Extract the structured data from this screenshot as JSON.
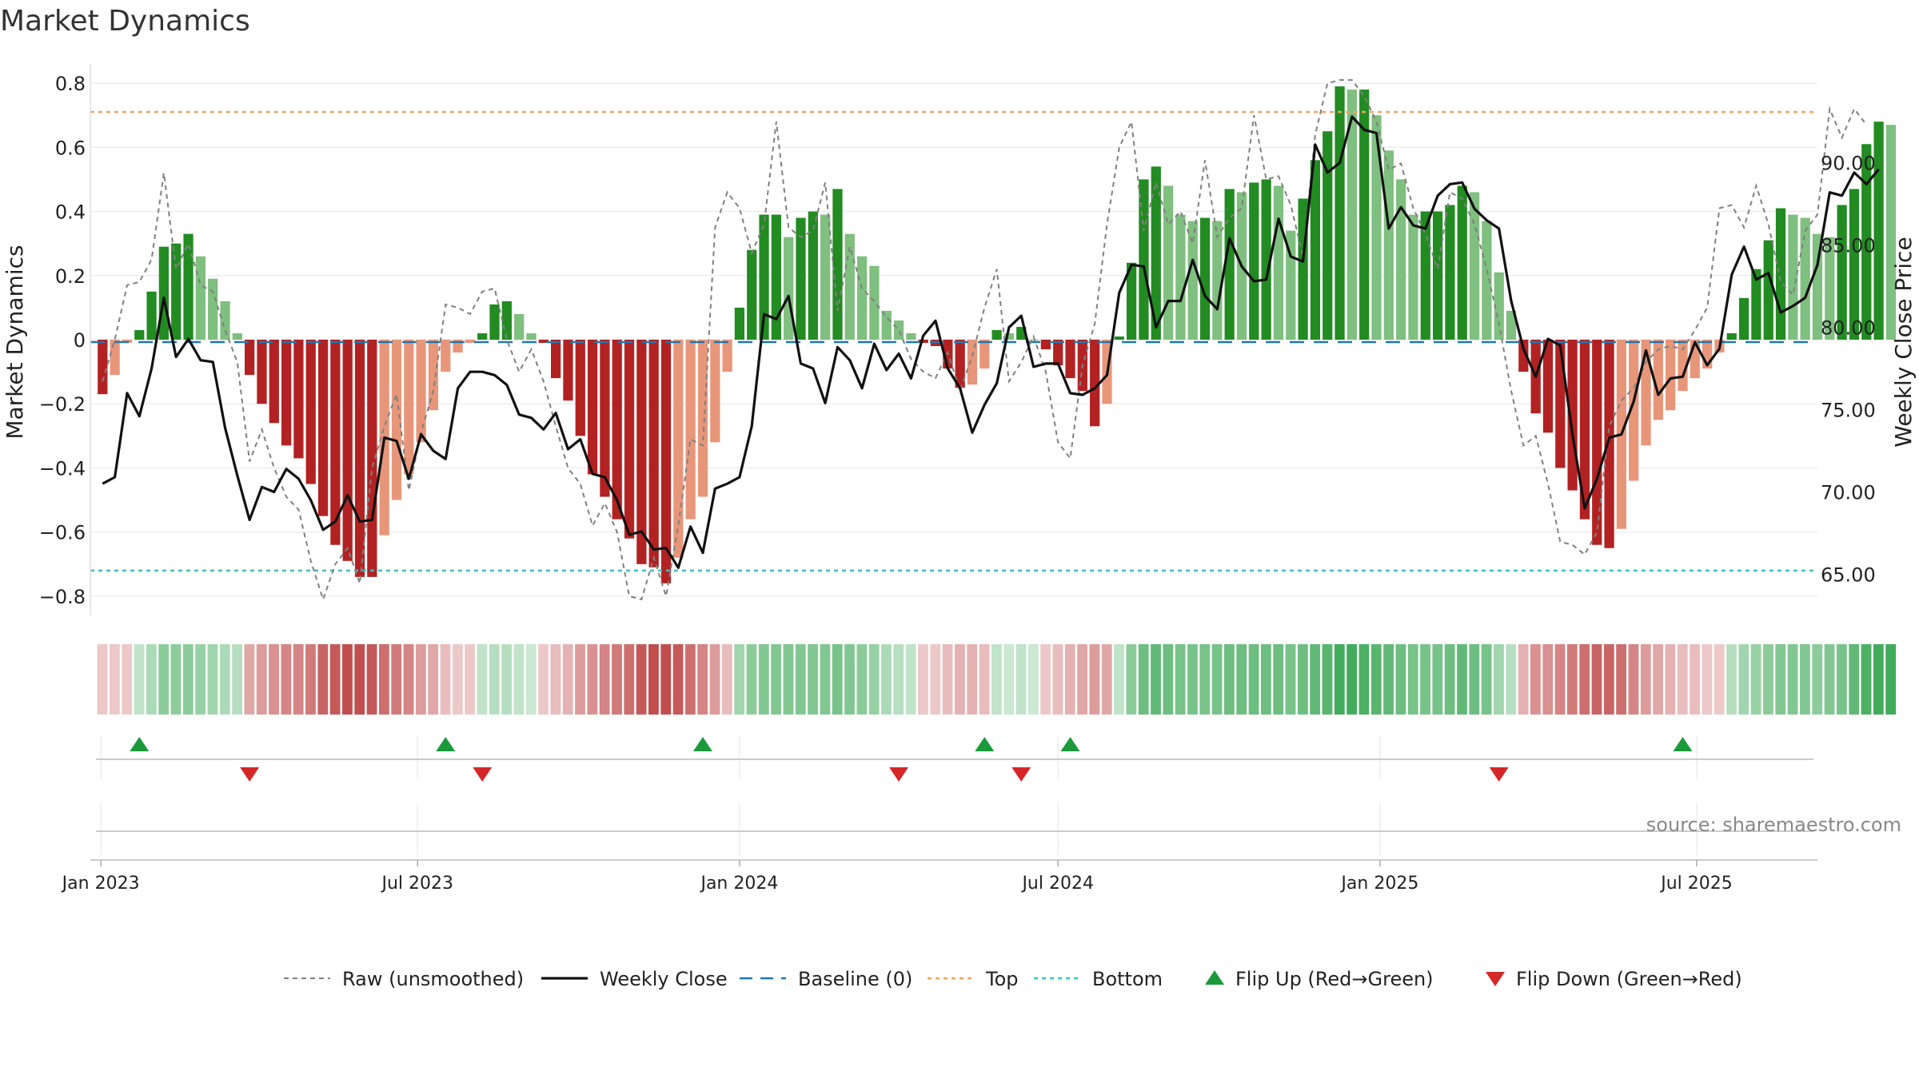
{
  "chart_data": {
    "type": "bar",
    "title": "Market Dynamics",
    "ylabel_left": "Market Dynamics",
    "ylabel_right": "Weekly Close Price",
    "source": "source: sharemaestro.com",
    "x_range": [
      "2022-12-26",
      "2025-09-08"
    ],
    "x_ticks": [
      {
        "date": "2023-01-01",
        "label": "Jan 2023"
      },
      {
        "date": "2023-07-01",
        "label": "Jul 2023"
      },
      {
        "date": "2024-01-01",
        "label": "Jan 2024"
      },
      {
        "date": "2024-07-01",
        "label": "Jul 2024"
      },
      {
        "date": "2025-01-01",
        "label": "Jan 2025"
      },
      {
        "date": "2025-07-01",
        "label": "Jul 2025"
      }
    ],
    "y_left": {
      "range": [
        -0.86,
        0.86
      ],
      "ticks": [
        0.8,
        0.6,
        0.4,
        0.2,
        0,
        -0.2,
        -0.4,
        -0.6,
        -0.8
      ],
      "tick_labels": [
        "0.8",
        "0.6",
        "0.4",
        "0.2",
        "0",
        "−0.2",
        "−0.4",
        "−0.6",
        "−0.8"
      ]
    },
    "y_right": {
      "range": [
        62.5,
        96.0
      ],
      "ticks": [
        90,
        85,
        80,
        75,
        70,
        65
      ],
      "tick_labels": [
        "90.00",
        "85.00",
        "80.00",
        "75.00",
        "70.00",
        "65.00"
      ]
    },
    "top_level": 0.71,
    "bottom_level": -0.72,
    "grid": true,
    "colors": {
      "strong_green": "#228b22",
      "light_green": "#7fbf7f",
      "strong_red": "#b22222",
      "light_red": "#e8967a",
      "raw": "#808080",
      "weekly_close": "#111111",
      "baseline": "#1f77b4",
      "top": "#f4a460",
      "bottom": "#40c0c0",
      "flip_up": "#1a9a3a",
      "flip_down": "#d62728"
    },
    "start_date": "2023-01-02",
    "week_step_days": 7,
    "smoothed_values": [
      -0.17,
      -0.11,
      -0.01,
      0.03,
      0.15,
      0.29,
      0.3,
      0.33,
      0.26,
      0.19,
      0.12,
      0.02,
      -0.11,
      -0.2,
      -0.26,
      -0.33,
      -0.37,
      -0.45,
      -0.55,
      -0.64,
      -0.69,
      -0.74,
      -0.74,
      -0.61,
      -0.5,
      -0.42,
      -0.32,
      -0.22,
      -0.1,
      -0.04,
      -0.01,
      0.02,
      0.11,
      0.12,
      0.08,
      0.02,
      -0.01,
      -0.12,
      -0.19,
      -0.3,
      -0.42,
      -0.49,
      -0.56,
      -0.62,
      -0.7,
      -0.71,
      -0.76,
      -0.68,
      -0.56,
      -0.49,
      -0.32,
      -0.1,
      0.1,
      0.28,
      0.39,
      0.39,
      0.32,
      0.38,
      0.4,
      0.39,
      0.47,
      0.33,
      0.26,
      0.23,
      0.09,
      0.06,
      0.02,
      -0.01,
      -0.02,
      -0.09,
      -0.15,
      -0.14,
      -0.09,
      0.03,
      0.02,
      0.04,
      0.0,
      -0.03,
      -0.08,
      -0.12,
      -0.16,
      -0.27,
      -0.2,
      0.01,
      0.24,
      0.5,
      0.54,
      0.48,
      0.39,
      0.37,
      0.38,
      0.37,
      0.47,
      0.46,
      0.49,
      0.5,
      0.48,
      0.34,
      0.44,
      0.56,
      0.65,
      0.79,
      0.78,
      0.78,
      0.7,
      0.59,
      0.5,
      0.39,
      0.4,
      0.4,
      0.42,
      0.48,
      0.46,
      0.37,
      0.21,
      0.09,
      -0.1,
      -0.23,
      -0.29,
      -0.4,
      -0.47,
      -0.56,
      -0.64,
      -0.65,
      -0.59,
      -0.44,
      -0.33,
      -0.25,
      -0.22,
      -0.16,
      -0.12,
      -0.09,
      -0.04,
      0.02,
      0.13,
      0.22,
      0.31,
      0.41,
      0.39,
      0.38,
      0.33,
      0.32,
      0.42,
      0.47,
      0.61,
      0.68,
      0.67
    ],
    "raw_values": [
      -0.13,
      0.0,
      0.17,
      0.18,
      0.25,
      0.52,
      0.22,
      0.3,
      0.17,
      0.15,
      0.03,
      -0.07,
      -0.38,
      -0.28,
      -0.4,
      -0.49,
      -0.53,
      -0.69,
      -0.81,
      -0.7,
      -0.65,
      -0.76,
      -0.4,
      -0.27,
      -0.17,
      -0.47,
      -0.29,
      -0.16,
      0.11,
      0.1,
      0.08,
      0.15,
      0.16,
      0.0,
      -0.1,
      -0.03,
      -0.13,
      -0.27,
      -0.4,
      -0.45,
      -0.58,
      -0.51,
      -0.6,
      -0.8,
      -0.81,
      -0.68,
      -0.8,
      -0.58,
      -0.31,
      -0.33,
      0.35,
      0.46,
      0.41,
      0.27,
      0.36,
      0.68,
      0.35,
      0.32,
      0.34,
      0.49,
      0.09,
      0.29,
      0.16,
      0.12,
      0.07,
      0.03,
      -0.06,
      -0.1,
      -0.12,
      -0.04,
      -0.16,
      -0.05,
      0.1,
      0.22,
      -0.13,
      -0.07,
      0.01,
      -0.1,
      -0.32,
      -0.37,
      -0.08,
      0.05,
      0.36,
      0.6,
      0.68,
      0.34,
      0.49,
      0.36,
      0.4,
      0.3,
      0.56,
      0.32,
      0.38,
      0.41,
      0.7,
      0.5,
      0.51,
      0.42,
      0.26,
      0.64,
      0.8,
      0.81,
      0.81,
      0.76,
      0.68,
      0.53,
      0.55,
      0.41,
      0.33,
      0.22,
      0.46,
      0.44,
      0.36,
      0.22,
      0.05,
      -0.16,
      -0.33,
      -0.3,
      -0.45,
      -0.63,
      -0.64,
      -0.67,
      -0.6,
      -0.27,
      -0.19,
      -0.15,
      -0.07,
      -0.03,
      -0.02,
      -0.03,
      0.03,
      0.1,
      0.41,
      0.42,
      0.35,
      0.48,
      0.36,
      0.18,
      0.14,
      0.34,
      0.39,
      0.72,
      0.63,
      0.72,
      0.67
    ],
    "weekly_close": [
      70.5,
      70.9,
      76.0,
      74.6,
      77.5,
      81.8,
      78.2,
      79.3,
      78.0,
      77.9,
      73.9,
      71.0,
      68.3,
      70.3,
      70.0,
      71.4,
      70.8,
      69.5,
      67.7,
      68.2,
      69.8,
      68.2,
      68.3,
      73.3,
      73.1,
      70.8,
      73.5,
      72.5,
      72.0,
      76.3,
      77.3,
      77.3,
      77.1,
      76.5,
      74.7,
      74.5,
      73.8,
      74.8,
      72.6,
      73.2,
      71.1,
      70.9,
      69.5,
      67.4,
      67.6,
      66.5,
      66.6,
      65.4,
      67.9,
      66.3,
      70.2,
      70.5,
      70.9,
      74.0,
      80.8,
      80.5,
      81.9,
      77.8,
      77.5,
      75.4,
      78.8,
      78.0,
      76.3,
      79.0,
      77.4,
      78.4,
      76.9,
      79.5,
      80.4,
      77.5,
      76.3,
      73.6,
      75.3,
      76.6,
      80.0,
      80.7,
      77.6,
      77.8,
      77.8,
      76.0,
      75.9,
      76.3,
      77.1,
      82.1,
      83.8,
      83.7,
      80.0,
      81.6,
      81.6,
      84.1,
      81.9,
      81.1,
      85.4,
      83.7,
      82.8,
      82.9,
      86.6,
      84.3,
      84.0,
      91.1,
      89.4,
      90.0,
      92.8,
      92.0,
      91.8,
      86.0,
      87.3,
      86.2,
      86.0,
      88.0,
      88.7,
      88.8,
      87.2,
      86.5,
      86.0,
      81.6,
      78.7,
      77.0,
      79.3,
      78.9,
      73.5,
      69.0,
      70.8,
      73.3,
      73.5,
      75.5,
      78.6,
      75.9,
      76.9,
      77.0,
      79.1,
      77.7,
      78.7,
      83.2,
      84.9,
      82.9,
      83.3,
      80.9,
      81.3,
      81.8,
      83.8,
      88.2,
      88.0,
      89.4,
      88.7,
      89.6
    ]
  },
  "strip": {
    "intensities": [
      0.25,
      0.25,
      0.25,
      0.3,
      0.4,
      0.55,
      0.55,
      0.55,
      0.5,
      0.45,
      0.4,
      0.35,
      0.4,
      0.45,
      0.5,
      0.55,
      0.55,
      0.6,
      0.7,
      0.75,
      0.8,
      0.8,
      0.75,
      0.65,
      0.6,
      0.55,
      0.45,
      0.4,
      0.3,
      0.25,
      0.25,
      0.3,
      0.35,
      0.35,
      0.3,
      0.25,
      0.25,
      0.3,
      0.35,
      0.45,
      0.5,
      0.55,
      0.6,
      0.65,
      0.75,
      0.8,
      0.8,
      0.75,
      0.65,
      0.55,
      0.45,
      0.3,
      0.45,
      0.55,
      0.6,
      0.6,
      0.6,
      0.6,
      0.6,
      0.6,
      0.65,
      0.6,
      0.55,
      0.5,
      0.4,
      0.35,
      0.3,
      0.25,
      0.25,
      0.3,
      0.35,
      0.35,
      0.3,
      0.3,
      0.25,
      0.3,
      0.25,
      0.25,
      0.3,
      0.35,
      0.4,
      0.45,
      0.4,
      0.3,
      0.55,
      0.7,
      0.75,
      0.7,
      0.65,
      0.65,
      0.65,
      0.65,
      0.7,
      0.7,
      0.7,
      0.7,
      0.7,
      0.65,
      0.7,
      0.75,
      0.8,
      0.9,
      0.9,
      0.85,
      0.8,
      0.75,
      0.7,
      0.65,
      0.65,
      0.65,
      0.7,
      0.75,
      0.7,
      0.65,
      0.45,
      0.35,
      0.35,
      0.5,
      0.5,
      0.55,
      0.6,
      0.65,
      0.7,
      0.7,
      0.65,
      0.55,
      0.45,
      0.4,
      0.35,
      0.3,
      0.3,
      0.25,
      0.25,
      0.35,
      0.45,
      0.5,
      0.55,
      0.6,
      0.6,
      0.6,
      0.55,
      0.6,
      0.65,
      0.75,
      0.85,
      0.9,
      0.9
    ]
  },
  "events": {
    "flip_up_dates": [
      "2023-01-23",
      "2023-07-17",
      "2023-12-11",
      "2024-05-20",
      "2024-07-08",
      "2025-06-23"
    ],
    "flip_down_dates": [
      "2023-03-27",
      "2023-08-07",
      "2024-04-01",
      "2024-06-10",
      "2025-03-10"
    ]
  },
  "legend": [
    {
      "key": "raw",
      "label": "Raw (unsmoothed)"
    },
    {
      "key": "close",
      "label": "Weekly Close"
    },
    {
      "key": "baseline",
      "label": "Baseline (0)"
    },
    {
      "key": "top",
      "label": "Top"
    },
    {
      "key": "bottom",
      "label": "Bottom"
    },
    {
      "key": "flip_up",
      "label": "Flip Up (Red→Green)"
    },
    {
      "key": "flip_down",
      "label": "Flip Down (Green→Red)"
    }
  ]
}
